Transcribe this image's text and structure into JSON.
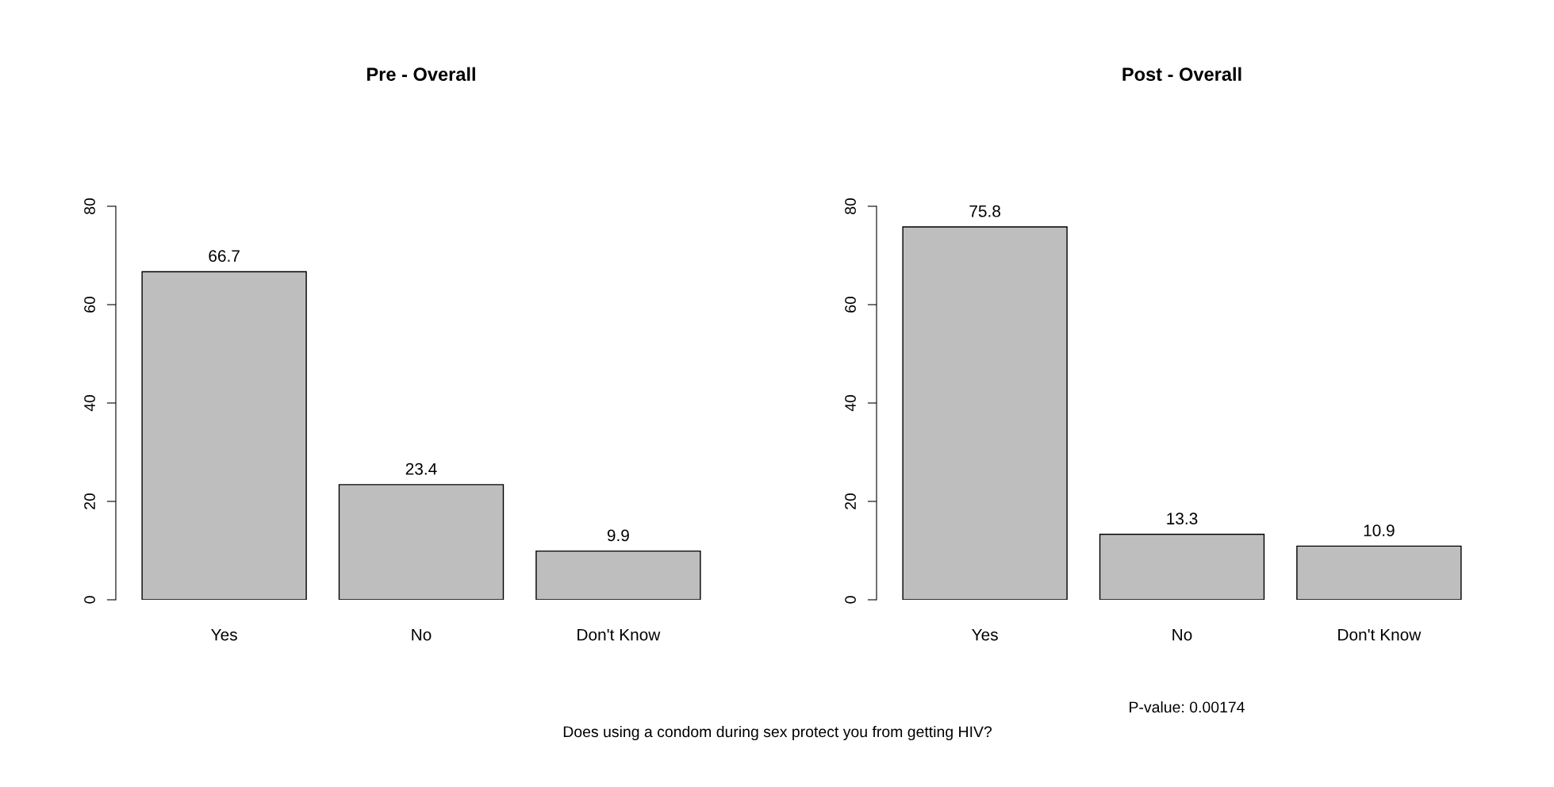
{
  "chart_data": [
    {
      "type": "bar",
      "title": "Pre - Overall",
      "categories": [
        "Yes",
        "No",
        "Don't Know"
      ],
      "values": [
        66.7,
        23.4,
        9.9
      ],
      "color": "#bebebe",
      "ylim": [
        0,
        80
      ],
      "yticks": [
        0,
        20,
        40,
        60,
        80
      ],
      "data_labels": true,
      "grid": false,
      "annotations": [
        "Does using a condom during sex protect you from getting HIV?"
      ]
    },
    {
      "type": "bar",
      "title": "Post - Overall",
      "categories": [
        "Yes",
        "No",
        "Don't Know"
      ],
      "values": [
        75.8,
        13.3,
        10.9
      ],
      "color": "#bebebe",
      "ylim": [
        0,
        80
      ],
      "yticks": [
        0,
        20,
        40,
        60,
        80
      ],
      "data_labels": true,
      "grid": false,
      "annotations": [
        "P-value: 0.00174"
      ]
    }
  ]
}
